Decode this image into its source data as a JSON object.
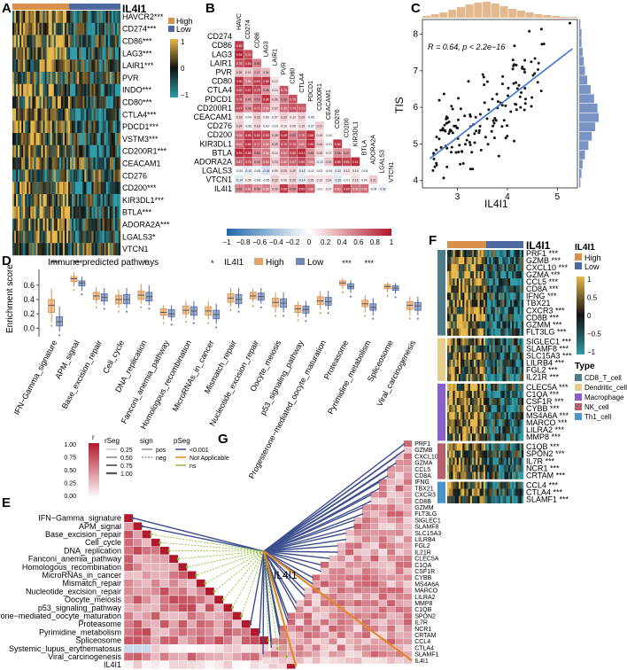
{
  "panel_labels": [
    "A",
    "B",
    "C",
    "D",
    "E",
    "F",
    "G"
  ],
  "colors": {
    "high": "#d9904a",
    "low": "#4f6aa0",
    "heat_hi": "#e8b84c",
    "heat_mid": "#121212",
    "heat_lo": "#2f9ca8",
    "corr_pos": "#b2182b",
    "corr_neg": "#2166ac",
    "line_blue": "#3e4f8e",
    "line_green": "#8fbf3a",
    "line_orange": "#e08a2b"
  },
  "panelA": {
    "title": "IL4I1",
    "legend_high": "High",
    "legend_low": "Low",
    "scale": [
      "1",
      "0",
      "−1"
    ],
    "genes": [
      "HAVCR2***",
      "CD274***",
      "CD86***",
      "LAG3***",
      "LAIR1***",
      "PVR",
      "INDO***",
      "CD80***",
      "CTLA4***",
      "PDCD1***",
      "VSTM3***",
      "CD200R1***",
      "CEACAM1",
      "CD276",
      "CD200***",
      "KIR3DL1***",
      "BTLA***",
      "ADORA2A***",
      "LGALS3*",
      "VTCN1"
    ]
  },
  "panelB": {
    "row_labels": [
      "CD274",
      "CD86",
      "LAG3",
      "LAIR1",
      "PVR",
      "CD80",
      "CTLA4",
      "PDCD1",
      "CD200R1",
      "CEACAM1",
      "CD276",
      "CD200",
      "KIR3DL1",
      "BTLA",
      "ADORA2A",
      "LGALS3",
      "VTCN1",
      "IL4I1"
    ],
    "col_labels": [
      "HAVC",
      "CD274",
      "CD86",
      "LAG3",
      "LAIR1",
      "PVR",
      "CD80",
      "CTLA4",
      "PDCD1",
      "CD200R1",
      "CEACAM1",
      "CD276",
      "CD200",
      "KIR3DL1",
      "BTLA",
      "ADORA2A",
      "LGALS3",
      "VTCN1"
    ],
    "colorbar_ticks": [
      "−1",
      "−0.8",
      "−0.6",
      "−0.4",
      "−0.2",
      "0",
      "0.2",
      "0.4",
      "0.6",
      "0.8",
      "1"
    ]
  },
  "chart_data": [
    {
      "type": "scatter",
      "panel": "C",
      "xlabel": "IL4I1",
      "ylabel": "TIS",
      "annotation": "R = 0.64, p < 2.2e−16",
      "x_ticks": [
        "3",
        "4",
        "5"
      ],
      "y_ticks": [
        "4",
        "5",
        "6",
        "7",
        "8"
      ],
      "xlim": [
        2.3,
        5.4
      ],
      "ylim": [
        3.8,
        8.4
      ],
      "fit_line": {
        "x0": 2.45,
        "y0": 4.6,
        "x1": 5.3,
        "y1": 7.6
      },
      "n_points": 150,
      "x_hist": [
        2,
        4,
        6,
        9,
        12,
        15,
        17,
        18,
        16,
        13,
        10,
        8,
        6,
        4,
        3,
        2,
        1,
        1
      ],
      "y_hist": [
        1,
        2,
        3,
        5,
        8,
        11,
        14,
        17,
        16,
        13,
        10,
        7,
        5,
        4,
        3,
        2,
        2,
        1
      ]
    },
    {
      "type": "box",
      "panel": "D",
      "title": "Immune predicted pathways",
      "legend_title": "IL4I1",
      "legend": [
        "High",
        "Low"
      ],
      "ylabel": "Enrichment score",
      "y_ticks": [
        "0.0",
        "0.2",
        "0.4",
        "0.6"
      ],
      "ylim": [
        -0.12,
        0.82
      ],
      "categories": [
        "IFN−Gamma_signature",
        "APM_signal",
        "Base_excision_repair",
        "Cell_cycle",
        "DNA_replication",
        "Fanconi_anemia_pathway",
        "Homologous_recombination",
        "MicroRNAs_in_cancer",
        "Mismatch_repair",
        "Nucleotide_excision_repair",
        "Oocyte_meiosis",
        "p53_signaling_pathway",
        "Progesterone−mediated_oocyte_maturation",
        "Proteasome",
        "Pyrimidine_metabolism",
        "Spliceosome",
        "Viral_carcinogenesis"
      ],
      "significance": [
        "***",
        "***",
        "",
        "",
        "*",
        "",
        "",
        "*",
        "",
        "",
        "",
        "",
        "",
        "***",
        "***",
        "",
        ""
      ],
      "series": [
        {
          "name": "High",
          "boxes": [
            [
              0.08,
              0.22,
              0.32,
              0.4,
              0.55
            ],
            [
              0.58,
              0.65,
              0.69,
              0.72,
              0.78
            ],
            [
              0.34,
              0.4,
              0.45,
              0.5,
              0.58
            ],
            [
              0.28,
              0.34,
              0.4,
              0.46,
              0.54
            ],
            [
              0.34,
              0.4,
              0.46,
              0.52,
              0.62
            ],
            [
              0.12,
              0.18,
              0.22,
              0.27,
              0.32
            ],
            [
              0.14,
              0.2,
              0.25,
              0.31,
              0.38
            ],
            [
              0.12,
              0.18,
              0.24,
              0.3,
              0.38
            ],
            [
              0.3,
              0.36,
              0.42,
              0.48,
              0.56
            ],
            [
              0.36,
              0.41,
              0.45,
              0.5,
              0.56
            ],
            [
              0.22,
              0.3,
              0.36,
              0.42,
              0.5
            ],
            [
              0.16,
              0.22,
              0.27,
              0.32,
              0.38
            ],
            [
              0.26,
              0.33,
              0.38,
              0.44,
              0.52
            ],
            [
              0.55,
              0.6,
              0.63,
              0.66,
              0.7
            ],
            [
              0.22,
              0.3,
              0.34,
              0.39,
              0.46
            ],
            [
              0.5,
              0.55,
              0.58,
              0.61,
              0.64
            ],
            [
              0.18,
              0.26,
              0.32,
              0.37,
              0.44
            ]
          ]
        },
        {
          "name": "Low",
          "boxes": [
            [
              -0.05,
              0.03,
              0.09,
              0.16,
              0.3
            ],
            [
              0.52,
              0.59,
              0.63,
              0.66,
              0.72
            ],
            [
              0.32,
              0.38,
              0.43,
              0.48,
              0.56
            ],
            [
              0.28,
              0.34,
              0.4,
              0.47,
              0.56
            ],
            [
              0.32,
              0.38,
              0.44,
              0.5,
              0.6
            ],
            [
              0.1,
              0.16,
              0.2,
              0.26,
              0.32
            ],
            [
              0.12,
              0.18,
              0.24,
              0.3,
              0.38
            ],
            [
              0.06,
              0.13,
              0.19,
              0.25,
              0.34
            ],
            [
              0.28,
              0.34,
              0.4,
              0.47,
              0.56
            ],
            [
              0.34,
              0.39,
              0.44,
              0.49,
              0.56
            ],
            [
              0.22,
              0.29,
              0.35,
              0.41,
              0.5
            ],
            [
              0.15,
              0.21,
              0.26,
              0.31,
              0.38
            ],
            [
              0.26,
              0.32,
              0.37,
              0.43,
              0.52
            ],
            [
              0.49,
              0.55,
              0.58,
              0.62,
              0.67
            ],
            [
              0.18,
              0.25,
              0.29,
              0.34,
              0.42
            ],
            [
              0.48,
              0.53,
              0.56,
              0.59,
              0.63
            ],
            [
              0.18,
              0.25,
              0.31,
              0.36,
              0.44
            ]
          ]
        }
      ]
    }
  ],
  "panelE": {
    "legend_r_title": "r",
    "legend_r_ticks": [
      "1.00",
      "0.75",
      "0.50",
      "0.25",
      "0.00"
    ],
    "legend_rseg_title": "rSeg",
    "legend_rseg_items": [
      "0.25",
      "0.50",
      "0.75",
      "1.00"
    ],
    "legend_sign_title": "sign",
    "legend_sign_items": [
      "pos",
      "neg"
    ],
    "legend_pseg_title": "pSeg",
    "legend_pseg_items": [
      "<0.001",
      "Not Applicable",
      "ns"
    ],
    "rows": [
      "IFN−Gamma_signature",
      "APM_signal",
      "Base_excision_repair",
      "Cell_cycle",
      "DNA_replication",
      "Fanconi_anemia_pathway",
      "Homologous_recombination",
      "MicroRNAs_in_cancer",
      "Mismatch_repair",
      "Nucleotide_excision_repair",
      "Oocyte_meiosis",
      "p53_signaling_pathway",
      "Progesterone−mediated_oocyte_maturation",
      "Proteasome",
      "Pyrimidine_metabolism",
      "Spliceosome",
      "Systemic_lupus_erythematosus",
      "Viral_carcinogenesis",
      "IL4I1"
    ],
    "hub": "IL4I1"
  },
  "panelF": {
    "title": "IL4I1",
    "legend_title": "IL4I1",
    "legend_high": "High",
    "legend_low": "Low",
    "scale": [
      "1",
      "0.5",
      "0",
      "−0.5",
      "−1"
    ],
    "type_title": "Type",
    "types": [
      "CD8_T_cell",
      "Dendritic_cell",
      "Macrophage",
      "NK_cell",
      "Th1_cell"
    ],
    "type_colors": [
      "#4d7e8a",
      "#e5cd8b",
      "#8a5fc7",
      "#b55f68",
      "#4a93c9"
    ],
    "groups": [
      {
        "type": "CD8_T_cell",
        "genes": [
          "PRF1 ***",
          "GZMB ***",
          "CXCL10 ***",
          "GZMA ***",
          "CCL5 ***",
          "CD8A ***",
          "IFNG ***",
          "TBX21",
          "CXCR3 ***",
          "CD8B ***",
          "GZMM ***",
          "FLT3LG ***"
        ]
      },
      {
        "type": "Dendritic_cell",
        "genes": [
          "SIGLEC1 ***",
          "SLAMF8 ***",
          "SLC15A3 ***",
          "LILRB4 ***",
          "FGL2 ***",
          "IL21R ***"
        ]
      },
      {
        "type": "Macrophage",
        "genes": [
          "CLEC5A ***",
          "C1QA ***",
          "CSF1R ***",
          "CYBB ***",
          "MS4A6A ***",
          "MARCO ***",
          "LILRA2 ***",
          "MMP8 ***"
        ]
      },
      {
        "type": "NK_cell",
        "genes": [
          "C1QB ***",
          "SPON2 ***",
          "IL7R ***",
          "NCR1 ***",
          "CRTAM ***"
        ]
      },
      {
        "type": "Th1_cell",
        "genes": [
          "CCL4 ***",
          "CTLA4 ***",
          "SLAMF1 ***"
        ]
      }
    ]
  },
  "panelG": {
    "hub": "IL4I1",
    "genes": [
      "PRF1",
      "GZMB",
      "CXCL10",
      "GZMA",
      "CCL5",
      "CD8A",
      "IFNG",
      "TBX21",
      "CXCR3",
      "CD8B",
      "GZMM",
      "FLT3LG",
      "SIGLEC1",
      "SLAMF8",
      "SLC15A3",
      "LILRB4",
      "FGL2",
      "IL21R",
      "CLEC5A",
      "C1QA",
      "CSF1R",
      "CYBB",
      "MS4A6A",
      "MARCO",
      "LILRA2",
      "MMP8",
      "C1QB",
      "SPON2",
      "IL7R",
      "NCR1",
      "CRTAM",
      "CCL4",
      "CTLA4",
      "SLAMF1",
      "IL4I1"
    ]
  }
}
